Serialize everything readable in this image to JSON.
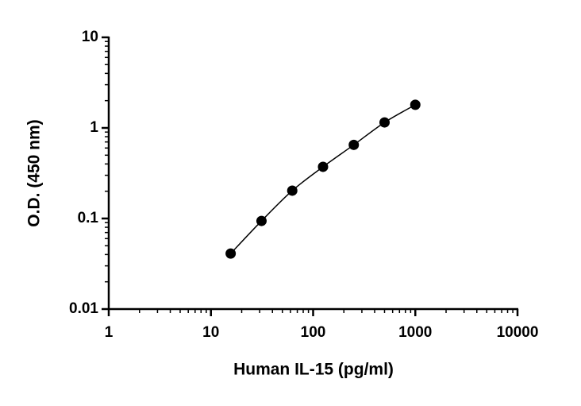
{
  "chart_data": {
    "type": "scatter",
    "x_label": "Human IL-15 (pg/ml)",
    "y_label": "O.D. (450 nm)",
    "xscale": "log",
    "yscale": "log",
    "xlim": [
      1,
      10000
    ],
    "ylim": [
      0.01,
      10
    ],
    "xticks": [
      1,
      10,
      100,
      1000,
      10000
    ],
    "yticks": [
      0.01,
      0.1,
      1,
      10
    ],
    "minor_ticks": true,
    "series": [
      {
        "color": "#000000",
        "line": true,
        "x": [
          15.6,
          31.25,
          62.5,
          125,
          250,
          500,
          1000
        ],
        "values": [
          0.041,
          0.094,
          0.203,
          0.372,
          0.65,
          1.15,
          1.8
        ]
      }
    ]
  }
}
